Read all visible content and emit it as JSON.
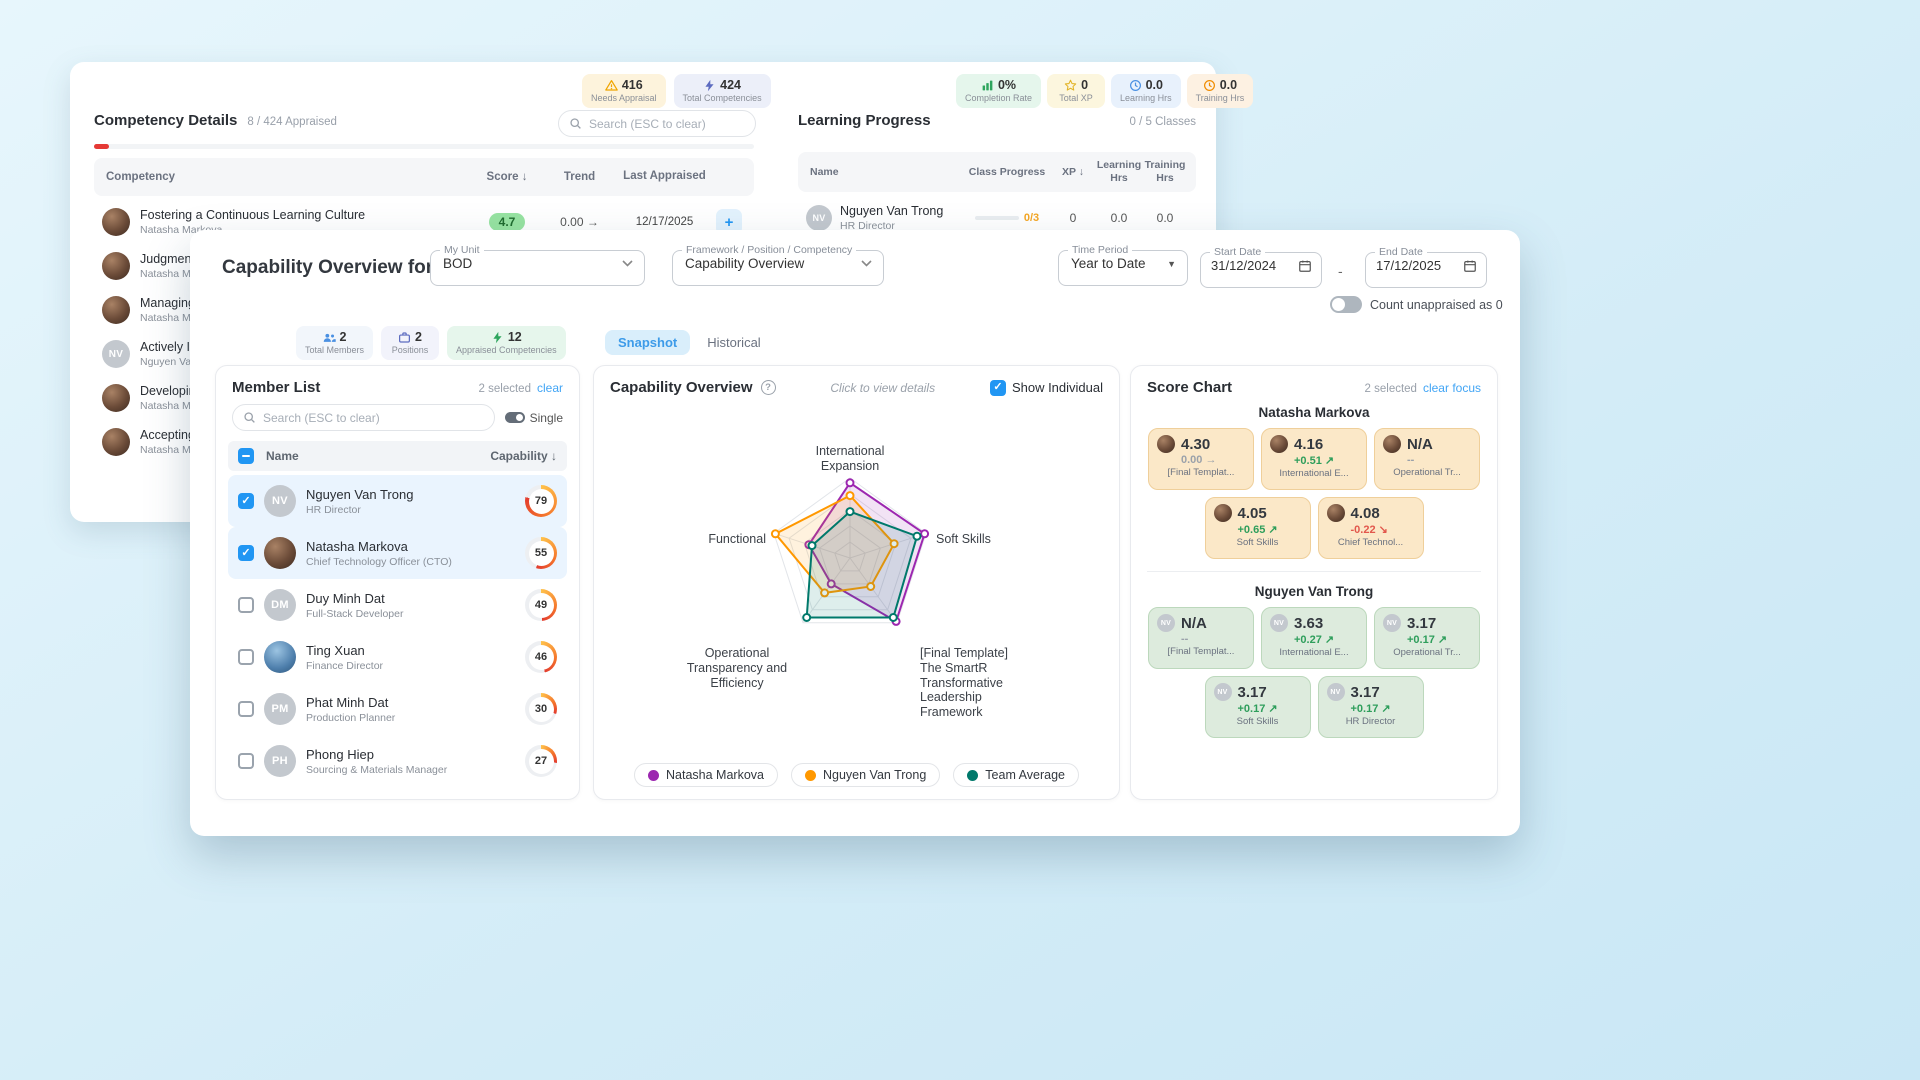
{
  "background_window": {
    "competency_details": {
      "title": "Competency Details",
      "appraised_summary": "8 / 424 Appraised",
      "badges": [
        {
          "icon": "warning-icon",
          "value": "416",
          "label": "Needs Appraisal",
          "bg": "#FDF3DC",
          "icon_color": "#F0A500"
        },
        {
          "icon": "lightning-icon",
          "value": "424",
          "label": "Total Competencies",
          "bg": "#ECEFF9",
          "icon_color": "#5C6BC0"
        }
      ],
      "search_placeholder": "Search (ESC to clear)",
      "columns": [
        "Competency",
        "Score ↓",
        "Trend",
        "Last Appraised"
      ],
      "rows": [
        {
          "competency": "Fostering a Continuous Learning Culture",
          "person": "Natasha Markova",
          "avatar": {
            "type": "photo-dark"
          },
          "score": "4.7",
          "trend": "0.00 →",
          "last_appraised": "12/17/2025",
          "add_label": "+"
        },
        {
          "competency": "Judgment",
          "person": "Natasha Mar",
          "avatar": {
            "type": "photo-dark"
          }
        },
        {
          "competency": "Managing",
          "person": "Natasha Mar",
          "avatar": {
            "type": "photo-dark"
          }
        },
        {
          "competency": "Actively Im",
          "person": "Nguyen Van",
          "avatar": {
            "type": "initials",
            "initials": "NV"
          }
        },
        {
          "competency": "Developing",
          "person": "Natasha Mar",
          "avatar": {
            "type": "photo-dark"
          }
        },
        {
          "competency": "Accepting",
          "person": "Natasha Mar",
          "avatar": {
            "type": "photo-dark"
          }
        }
      ]
    },
    "learning_progress": {
      "title": "Learning Progress",
      "classes_summary": "0 / 5 Classes",
      "badges": [
        {
          "icon": "chart-icon",
          "value": "0%",
          "label": "Completion Rate",
          "bg": "#E5F6EC",
          "icon_color": "#2DA55D"
        },
        {
          "icon": "star-icon",
          "value": "0",
          "label": "Total XP",
          "bg": "#FCF6DE",
          "icon_color": "#E2B428"
        },
        {
          "icon": "clock-icon",
          "value": "0.0",
          "label": "Learning Hrs",
          "bg": "#E8F1FC",
          "icon_color": "#4A90E2"
        },
        {
          "icon": "clock-icon",
          "value": "0.0",
          "label": "Training Hrs",
          "bg": "#FDF1E2",
          "icon_color": "#F08C00"
        }
      ],
      "columns": [
        "Name",
        "Class Progress",
        "XP ↓",
        "Learning Hrs",
        "Training Hrs"
      ],
      "rows": [
        {
          "name": "Nguyen Van Trong",
          "role": "HR Director",
          "avatar": {
            "type": "initials",
            "initials": "NV"
          },
          "class_progress": "0/3",
          "xp": "0",
          "learning_hrs": "0.0",
          "training_hrs": "0.0"
        }
      ]
    }
  },
  "main_window": {
    "title": "Capability Overview for",
    "filters": {
      "my_unit": {
        "label": "My Unit",
        "value": "BOD"
      },
      "framework": {
        "label": "Framework / Position / Competency",
        "value": "Capability Overview"
      },
      "time_period": {
        "label": "Time Period",
        "value": "Year to Date"
      },
      "start_date": {
        "label": "Start Date",
        "value": "31/12/2024"
      },
      "date_separator": "-",
      "end_date": {
        "label": "End Date",
        "value": "17/12/2025"
      },
      "count_unappraised_label": "Count unappraised as 0"
    },
    "stat_chips": [
      {
        "icon": "members-icon",
        "value": "2",
        "label": "Total Members",
        "bg": "#F2F6FB",
        "icon_color": "#4A90E2"
      },
      {
        "icon": "briefcase-icon",
        "value": "2",
        "label": "Positions",
        "bg": "#F2F3FB",
        "icon_color": "#5C6BC0"
      },
      {
        "icon": "lightning-icon",
        "value": "12",
        "label": "Appraised Competencies",
        "bg": "#E6F6EC",
        "icon_color": "#2DA55D"
      }
    ],
    "tabs": [
      {
        "label": "Snapshot",
        "active": true
      },
      {
        "label": "Historical",
        "active": false
      }
    ],
    "member_list": {
      "title": "Member List",
      "selected_text": "2 selected",
      "clear_label": "clear",
      "search_placeholder": "Search (ESC to clear)",
      "single_label": "Single",
      "name_column": "Name",
      "capability_column": "Capability ↓",
      "members": [
        {
          "name": "Nguyen Van Trong",
          "role": "HR Director",
          "capability": 79,
          "selected": true,
          "avatar": {
            "type": "initials",
            "initials": "NV"
          }
        },
        {
          "name": "Natasha Markova",
          "role": "Chief Technology Officer (CTO)",
          "capability": 55,
          "selected": true,
          "avatar": {
            "type": "photo-dark"
          }
        },
        {
          "name": "Duy Minh Dat",
          "role": "Full-Stack Developer",
          "capability": 49,
          "selected": false,
          "avatar": {
            "type": "initials",
            "initials": "DM"
          }
        },
        {
          "name": "Ting Xuan",
          "role": "Finance Director",
          "capability": 46,
          "selected": false,
          "avatar": {
            "type": "photo-blue"
          }
        },
        {
          "name": "Phat Minh Dat",
          "role": "Production Planner",
          "capability": 30,
          "selected": false,
          "avatar": {
            "type": "initials",
            "initials": "PM"
          }
        },
        {
          "name": "Phong Hiep",
          "role": "Sourcing & Materials Manager",
          "capability": 27,
          "selected": false,
          "avatar": {
            "type": "initials",
            "initials": "PH"
          }
        }
      ]
    },
    "overview": {
      "title": "Capability Overview",
      "hint": "Click to view details",
      "show_individual_label": "Show Individual"
    },
    "score_chart": {
      "title": "Score Chart",
      "selected_text": "2 selected",
      "clear_label": "clear focus",
      "groups": [
        {
          "person": "Natasha Markova",
          "theme": "orange",
          "avatar": {
            "type": "photo-dark"
          },
          "cards": [
            {
              "score": "4.30",
              "delta": "0.00",
              "arrow": "→",
              "trend": "flat",
              "label": "[Final Templat..."
            },
            {
              "score": "4.16",
              "delta": "+0.51",
              "arrow": "↗",
              "trend": "up",
              "label": "International E..."
            },
            {
              "score": "N/A",
              "delta": "--",
              "arrow": "",
              "trend": "none",
              "label": "Operational Tr..."
            },
            {
              "score": "4.05",
              "delta": "+0.65",
              "arrow": "↗",
              "trend": "up",
              "label": "Soft Skills"
            },
            {
              "score": "4.08",
              "delta": "-0.22",
              "arrow": "↘",
              "trend": "down",
              "label": "Chief Technol..."
            }
          ]
        },
        {
          "person": "Nguyen Van Trong",
          "theme": "green",
          "avatar": {
            "type": "initials",
            "initials": "NV"
          },
          "cards": [
            {
              "score": "N/A",
              "delta": "--",
              "arrow": "",
              "trend": "none",
              "label": "[Final Templat..."
            },
            {
              "score": "3.63",
              "delta": "+0.27",
              "arrow": "↗",
              "trend": "up",
              "label": "International E..."
            },
            {
              "score": "3.17",
              "delta": "+0.17",
              "arrow": "↗",
              "trend": "up",
              "label": "Operational Tr..."
            },
            {
              "score": "3.17",
              "delta": "+0.17",
              "arrow": "↗",
              "trend": "up",
              "label": "Soft Skills"
            },
            {
              "score": "3.17",
              "delta": "+0.17",
              "arrow": "↗",
              "trend": "up",
              "label": "HR Director"
            }
          ]
        }
      ]
    }
  },
  "chart_data": {
    "type": "radar",
    "title": "Capability Overview",
    "axes": [
      "International Expansion",
      "Soft Skills",
      "[Final Template] The SmartR Transformative Leadership Framework",
      "Operational Transparency and Efficiency",
      "Functional"
    ],
    "max": 5,
    "grid": true,
    "legend_position": "bottom",
    "series": [
      {
        "name": "Natasha Markova",
        "color": "#9C27B0",
        "values": [
          4.7,
          4.9,
          4.9,
          2.0,
          2.7
        ]
      },
      {
        "name": "Nguyen Van Trong",
        "color": "#FF9800",
        "values": [
          3.9,
          2.9,
          2.2,
          2.7,
          4.9
        ]
      },
      {
        "name": "Team Average",
        "color": "#00796B",
        "values": [
          2.9,
          4.4,
          4.6,
          4.6,
          2.5
        ]
      }
    ]
  }
}
